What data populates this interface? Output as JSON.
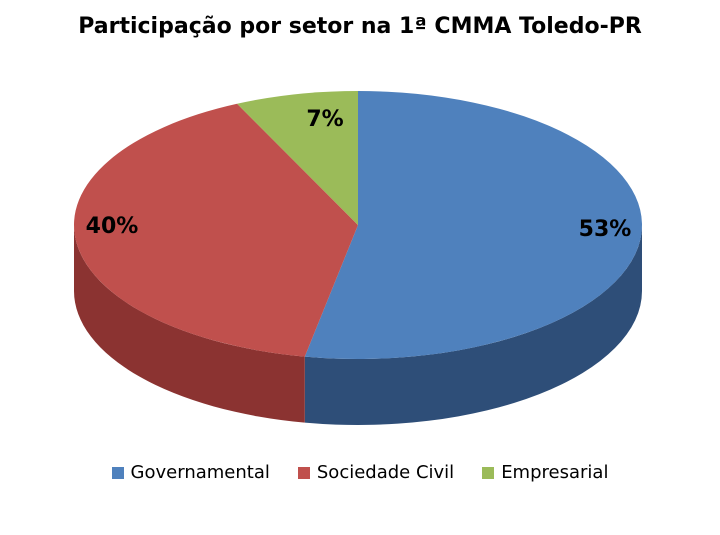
{
  "chart_data": {
    "type": "pie",
    "title": "Participação por setor na 1ª CMMA Toledo-PR",
    "categories": [
      "Governamental",
      "Sociedade Civil",
      "Empresarial"
    ],
    "values": [
      53,
      40,
      7
    ],
    "labels": [
      "53%",
      "40%",
      "7%"
    ],
    "colors": [
      "#4F81BD",
      "#C0504D",
      "#9BBB59"
    ],
    "side_colors": [
      "#2E4E78",
      "#8B3331",
      "#6E8A3C"
    ],
    "legend_position": "bottom",
    "style": "3d-pie"
  }
}
